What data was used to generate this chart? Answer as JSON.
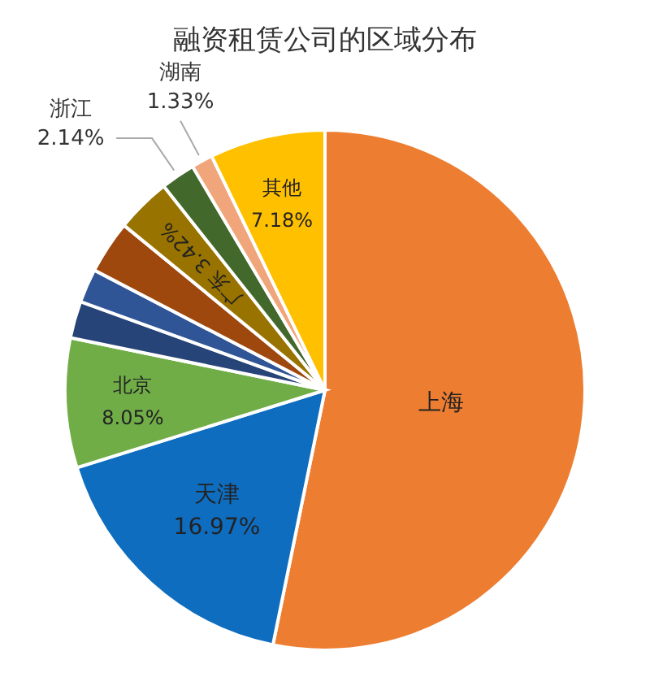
{
  "chart_data": {
    "type": "pie",
    "title": "融资租赁公司的区域分布",
    "categories": [
      "上海",
      "天津",
      "北京",
      null,
      null,
      null,
      "广东",
      "浙江",
      "湖南",
      "其他"
    ],
    "values": [
      53.21,
      16.97,
      8.05,
      2.3,
      2.1,
      3.3,
      3.42,
      2.14,
      1.33,
      7.18
    ],
    "value_labels": [
      null,
      "16.97%",
      "8.05%",
      null,
      null,
      null,
      "3.42%",
      "2.14%",
      "1.33%",
      "7.18%"
    ],
    "colors": [
      "#ed7d31",
      "#0f6dbf",
      "#70ad47",
      "#264478",
      "#2f5597",
      "#9e480e",
      "#997300",
      "#43682b",
      "#f1a57a",
      "#ffc000"
    ]
  }
}
